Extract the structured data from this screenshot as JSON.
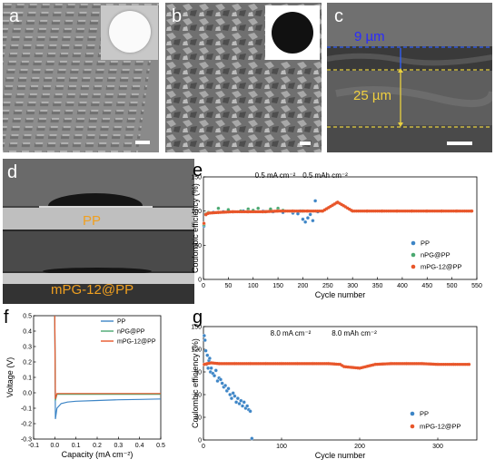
{
  "panels": {
    "a": {
      "label": "a"
    },
    "b": {
      "label": "b"
    },
    "c": {
      "label": "c",
      "thickness_top": "9 µm",
      "thickness_bottom": "25 µm"
    },
    "d": {
      "label": "d",
      "top_caption": "PP",
      "bottom_caption": "mPG-12@PP"
    },
    "e": {
      "label": "e"
    },
    "f": {
      "label": "f"
    },
    "g": {
      "label": "g"
    }
  },
  "colors": {
    "pp": "#3d85c6",
    "npg": "#4aa870",
    "mpg": "#e8562a",
    "caption_orange": "#f0a020",
    "yellow_line": "#e8d040",
    "blue_line": "#3060ff",
    "label_9um": "#2a2aff"
  },
  "chart_data": [
    {
      "id": "e",
      "type": "scatter",
      "annotations": [
        "0.5 mA cm⁻²",
        "0.5 mAh cm⁻²"
      ],
      "xlabel": "Cycle number",
      "ylabel": "Coulombic efficiency (%)",
      "xlim": [
        0,
        550
      ],
      "ylim": [
        0,
        150
      ],
      "xticks": [
        0,
        50,
        100,
        150,
        200,
        250,
        300,
        350,
        400,
        450,
        500,
        550
      ],
      "yticks": [
        0,
        50,
        100,
        150
      ],
      "legend_position": "bottom-right",
      "series": [
        {
          "name": "PP",
          "color_key": "pp",
          "x": [
            1,
            5,
            10,
            20,
            40,
            60,
            80,
            100,
            120,
            140,
            160,
            180,
            190,
            195,
            200,
            205,
            210,
            215,
            220,
            225,
            230
          ],
          "y": [
            78,
            95,
            97,
            98,
            99,
            99,
            100,
            101,
            100,
            99,
            98,
            97,
            96,
            100,
            88,
            84,
            90,
            95,
            86,
            115,
            99
          ]
        },
        {
          "name": "nPG@PP",
          "color_key": "npg",
          "x": [
            1,
            5,
            10,
            30,
            50,
            75,
            90,
            100,
            110,
            125,
            135,
            150,
            160,
            180,
            200
          ],
          "y": [
            80,
            96,
            98,
            104,
            102,
            100,
            103,
            101,
            104,
            99,
            103,
            104,
            101,
            100,
            100
          ]
        },
        {
          "name": "mPG-12@PP",
          "color_key": "mpg",
          "x": [
            1,
            5,
            10,
            30,
            60,
            90,
            120,
            150,
            180,
            210,
            240,
            270,
            300,
            330,
            360,
            390,
            420,
            450,
            480,
            510,
            540
          ],
          "y": [
            82,
            95,
            97,
            98,
            99,
            99,
            99,
            100,
            100,
            100,
            100,
            113,
            100,
            100,
            100,
            100,
            100,
            100,
            100,
            100,
            100
          ]
        }
      ]
    },
    {
      "id": "f",
      "type": "line",
      "xlabel": "Capacity (mA cm⁻²)",
      "ylabel": "Voltage (V)",
      "xlim": [
        -0.1,
        0.5
      ],
      "ylim": [
        -0.3,
        0.5
      ],
      "xticks": [
        -0.1,
        0.0,
        0.1,
        0.2,
        0.3,
        0.4,
        0.5
      ],
      "xtick_labels": [
        "-0.1",
        "0.0",
        "0.1",
        "0.2",
        "0.3",
        "0.4",
        "0.5"
      ],
      "yticks": [
        -0.3,
        -0.2,
        -0.1,
        0.0,
        0.1,
        0.2,
        0.3,
        0.4,
        0.5
      ],
      "ytick_labels": [
        "-0.3",
        "-0.2",
        "-0.1",
        "0.0",
        "0.1",
        "0.2",
        "0.3",
        "0.4",
        "0.5"
      ],
      "legend_position": "top-right",
      "series": [
        {
          "name": "PP",
          "color_key": "pp",
          "x": [
            0.0,
            0.003,
            0.01,
            0.03,
            0.06,
            0.1,
            0.2,
            0.3,
            0.4,
            0.5
          ],
          "y": [
            0.5,
            -0.17,
            -0.1,
            -0.07,
            -0.06,
            -0.055,
            -0.05,
            -0.045,
            -0.043,
            -0.04
          ]
        },
        {
          "name": "nPG@PP",
          "color_key": "npg",
          "x": [
            0.0,
            0.003,
            0.01,
            0.05,
            0.1,
            0.2,
            0.3,
            0.4,
            0.5
          ],
          "y": [
            0.5,
            -0.05,
            -0.01,
            -0.01,
            -0.01,
            -0.01,
            -0.01,
            -0.01,
            -0.01
          ]
        },
        {
          "name": "mPG-12@PP",
          "color_key": "mpg",
          "x": [
            0.0,
            0.003,
            0.01,
            0.05,
            0.1,
            0.2,
            0.3,
            0.4,
            0.5
          ],
          "y": [
            0.5,
            -0.04,
            -0.005,
            -0.005,
            -0.005,
            -0.005,
            -0.005,
            -0.005,
            -0.005
          ]
        }
      ]
    },
    {
      "id": "g",
      "type": "scatter",
      "annotations": [
        "8.0 mA cm⁻²",
        "8.0 mAh cm⁻²"
      ],
      "xlabel": "Cycle number",
      "ylabel": "Coulombic efficiency (%)",
      "xlim": [
        0,
        350
      ],
      "ylim": [
        0,
        150
      ],
      "xticks": [
        0,
        100,
        200,
        300
      ],
      "yticks": [
        0,
        30,
        60,
        90,
        120,
        150
      ],
      "legend_position": "bottom-right",
      "series": [
        {
          "name": "PP",
          "color_key": "pp",
          "x": [
            1,
            2,
            3,
            4,
            5,
            6,
            7,
            8,
            9,
            10,
            12,
            14,
            16,
            18,
            20,
            22,
            24,
            26,
            28,
            30,
            32,
            34,
            36,
            38,
            40,
            42,
            44,
            46,
            48,
            50,
            52,
            54,
            56,
            58,
            60,
            62
          ],
          "y": [
            138,
            132,
            118,
            100,
            112,
            95,
            105,
            108,
            90,
            95,
            88,
            85,
            92,
            78,
            82,
            80,
            75,
            70,
            72,
            65,
            68,
            60,
            55,
            62,
            58,
            50,
            55,
            48,
            52,
            45,
            50,
            42,
            45,
            40,
            38,
            2
          ]
        },
        {
          "name": "mPG-12@PP",
          "color_key": "mpg",
          "x": [
            1,
            5,
            10,
            20,
            40,
            60,
            80,
            100,
            120,
            140,
            160,
            175,
            180,
            200,
            220,
            240,
            260,
            280,
            300,
            320,
            340
          ],
          "y": [
            100,
            101,
            102,
            101,
            101,
            101,
            101,
            101,
            101,
            101,
            101,
            100,
            97,
            95,
            100,
            101,
            101,
            101,
            100,
            100,
            100
          ]
        }
      ]
    }
  ]
}
